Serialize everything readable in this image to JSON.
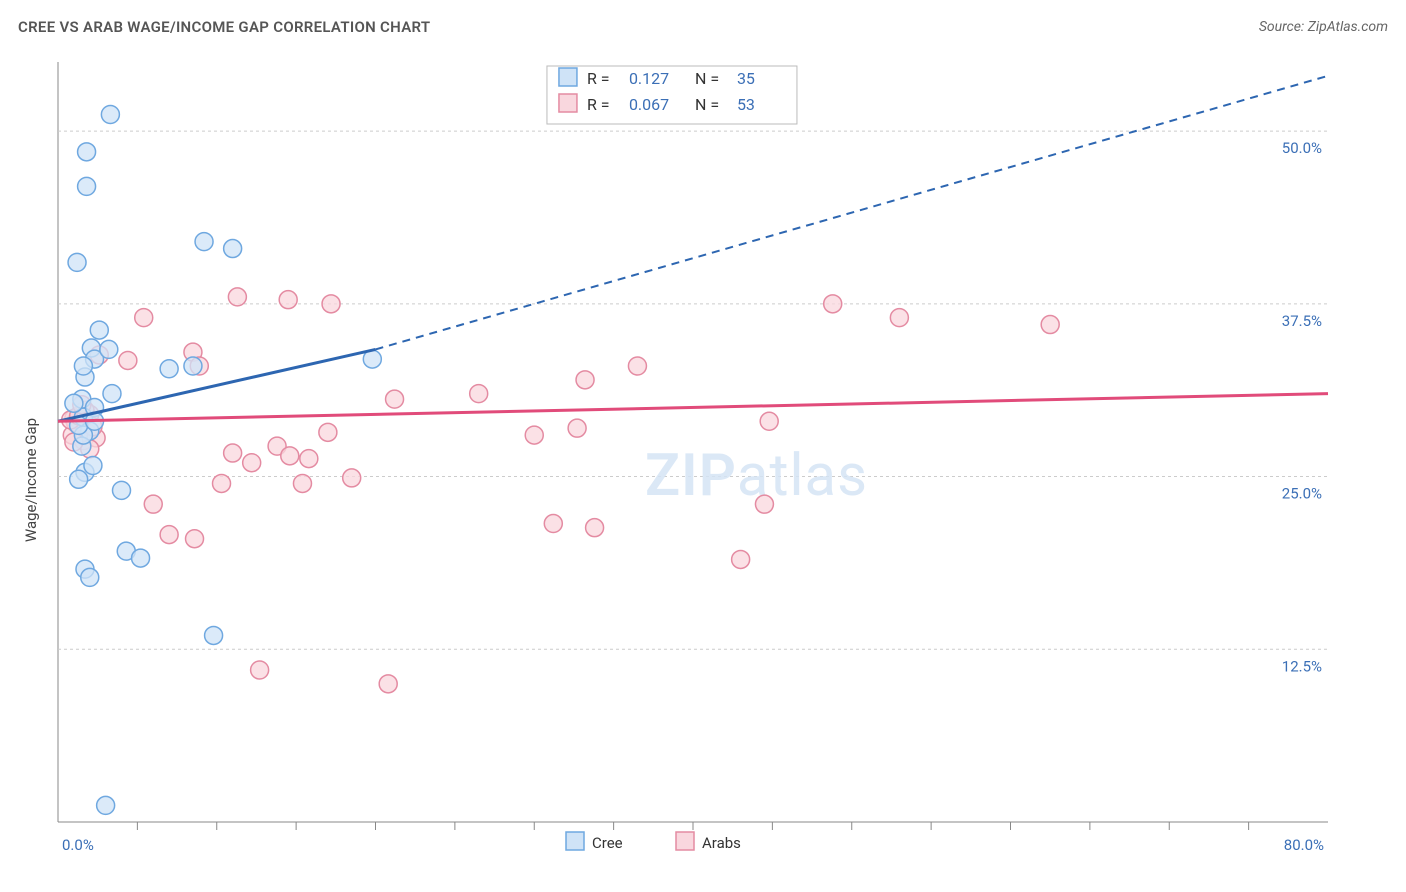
{
  "title": "CREE VS ARAB WAGE/INCOME GAP CORRELATION CHART",
  "source": "Source: ZipAtlas.com",
  "watermark": {
    "zip": "ZIP",
    "atlas": "atlas"
  },
  "y_axis_title": "Wage/Income Gap",
  "colors": {
    "cree_fill": "#cfe3f7",
    "cree_stroke": "#6fa8e0",
    "arab_fill": "#f9d7de",
    "arab_stroke": "#e48ba2",
    "cree_line": "#2d66b1",
    "arab_line": "#e14b7a",
    "tick_text": "#3b6fb6",
    "grid": "#cccccc",
    "axis": "#888888",
    "bg": "#ffffff"
  },
  "marker_radius": 9,
  "marker_stroke_width": 1.5,
  "xlim": [
    0,
    80
  ],
  "ylim": [
    0,
    55
  ],
  "x_ticks": [
    0,
    80
  ],
  "x_minor_ticks": [
    5,
    10,
    15,
    20,
    25,
    30,
    35,
    40,
    45,
    50,
    55,
    60,
    65,
    70,
    75
  ],
  "y_grid": [
    12.5,
    25.0,
    37.5,
    50.0
  ],
  "x_tick_labels": {
    "0": "0.0%",
    "80": "80.0%"
  },
  "y_tick_labels": {
    "12.5": "12.5%",
    "25.0": "25.0%",
    "37.5": "37.5%",
    "50.0": "50.0%"
  },
  "legend_top": {
    "series": [
      {
        "swatch_fill": "#cfe3f7",
        "swatch_stroke": "#6fa8e0",
        "r_label": "R =",
        "r_value": "0.127",
        "n_label": "N =",
        "n_value": "35"
      },
      {
        "swatch_fill": "#f9d7de",
        "swatch_stroke": "#e48ba2",
        "r_label": "R =",
        "r_value": "0.067",
        "n_label": "N =",
        "n_value": "53"
      }
    ]
  },
  "legend_bottom": [
    {
      "swatch_fill": "#cfe3f7",
      "swatch_stroke": "#6fa8e0",
      "label": "Cree"
    },
    {
      "swatch_fill": "#f9d7de",
      "swatch_stroke": "#e48ba2",
      "label": "Arabs"
    }
  ],
  "trend_lines": {
    "cree": {
      "solid": {
        "x1": 0,
        "y1": 29,
        "x2": 20,
        "y2": 34.2
      },
      "dashed": {
        "x1": 20,
        "y1": 34.2,
        "x2": 80,
        "y2": 54
      },
      "stroke_width": 3
    },
    "arab": {
      "solid": {
        "x1": 0,
        "y1": 29,
        "x2": 80,
        "y2": 31
      },
      "stroke_width": 3
    }
  },
  "series": {
    "cree": [
      [
        3.3,
        51.2
      ],
      [
        1.8,
        48.5
      ],
      [
        1.8,
        46.0
      ],
      [
        2.1,
        34.3
      ],
      [
        2.3,
        33.5
      ],
      [
        3.2,
        34.2
      ],
      [
        1.7,
        32.2
      ],
      [
        3.4,
        31.0
      ],
      [
        1.5,
        30.6
      ],
      [
        11.0,
        41.5
      ],
      [
        7.0,
        32.8
      ],
      [
        8.5,
        33.0
      ],
      [
        19.8,
        33.5
      ],
      [
        1.6,
        29.3
      ],
      [
        4.0,
        24.0
      ],
      [
        4.3,
        19.6
      ],
      [
        5.2,
        19.1
      ],
      [
        1.7,
        18.3
      ],
      [
        2.0,
        17.7
      ],
      [
        1.7,
        25.3
      ],
      [
        2.2,
        25.8
      ],
      [
        1.3,
        24.8
      ],
      [
        2.0,
        28.3
      ],
      [
        1.5,
        27.2
      ],
      [
        9.2,
        42.0
      ],
      [
        1.6,
        28.0
      ],
      [
        1.3,
        28.7
      ],
      [
        2.6,
        35.6
      ],
      [
        3.0,
        1.2
      ],
      [
        1.6,
        33.0
      ],
      [
        2.3,
        30.0
      ],
      [
        1.2,
        40.5
      ],
      [
        1.0,
        30.3
      ],
      [
        2.3,
        29.0
      ],
      [
        9.8,
        13.5
      ]
    ],
    "arab": [
      [
        5.4,
        36.5
      ],
      [
        11.3,
        38.0
      ],
      [
        14.5,
        37.8
      ],
      [
        17.2,
        37.5
      ],
      [
        8.5,
        34.0
      ],
      [
        8.9,
        33.0
      ],
      [
        4.4,
        33.4
      ],
      [
        2.6,
        33.8
      ],
      [
        26.5,
        31.0
      ],
      [
        21.2,
        30.6
      ],
      [
        17.0,
        28.2
      ],
      [
        33.2,
        32.0
      ],
      [
        36.5,
        33.0
      ],
      [
        13.8,
        27.2
      ],
      [
        14.6,
        26.5
      ],
      [
        11.0,
        26.7
      ],
      [
        12.2,
        26.0
      ],
      [
        15.8,
        26.3
      ],
      [
        10.3,
        24.5
      ],
      [
        15.4,
        24.5
      ],
      [
        18.5,
        24.9
      ],
      [
        6.0,
        23.0
      ],
      [
        7.0,
        20.8
      ],
      [
        8.6,
        20.5
      ],
      [
        31.2,
        21.6
      ],
      [
        33.8,
        21.3
      ],
      [
        32.7,
        28.5
      ],
      [
        43.0,
        19.0
      ],
      [
        30.0,
        28.0
      ],
      [
        44.5,
        23.0
      ],
      [
        12.7,
        11.0
      ],
      [
        20.8,
        10.0
      ],
      [
        48.8,
        37.5
      ],
      [
        53.0,
        36.5
      ],
      [
        44.8,
        29.0
      ],
      [
        62.5,
        36.0
      ],
      [
        1.2,
        28.8
      ],
      [
        1.0,
        29.2
      ],
      [
        1.5,
        28.4
      ],
      [
        0.9,
        28.0
      ],
      [
        2.0,
        29.5
      ],
      [
        1.4,
        29.0
      ],
      [
        1.8,
        28.2
      ],
      [
        1.1,
        28.9
      ],
      [
        1.6,
        27.6
      ],
      [
        0.8,
        29.1
      ],
      [
        2.4,
        27.8
      ],
      [
        2.0,
        27.0
      ],
      [
        1.3,
        29.4
      ],
      [
        1.7,
        29.8
      ],
      [
        2.2,
        28.6
      ],
      [
        1.0,
        27.5
      ],
      [
        1.5,
        30.2
      ]
    ]
  }
}
